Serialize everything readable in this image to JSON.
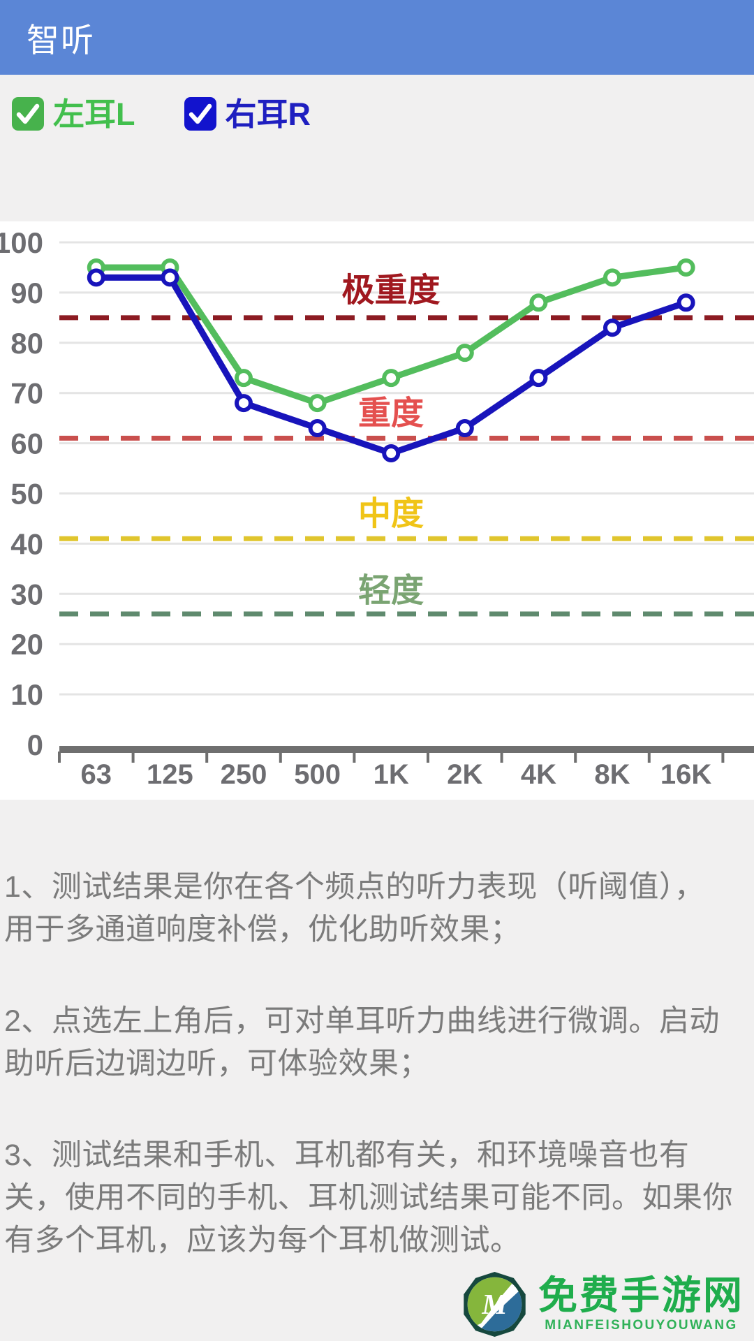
{
  "header": {
    "title": "智听",
    "bg": "#5b86d6"
  },
  "legend": {
    "left": {
      "label": "左耳L",
      "label_color": "#42bf4d",
      "checkbox_color": "#47b24c",
      "checked": true
    },
    "right": {
      "label": "右耳R",
      "label_color": "#1f1fc0",
      "checkbox_color": "#1213cd",
      "checked": true
    }
  },
  "chart_data": {
    "type": "line",
    "categories": [
      "63",
      "125",
      "250",
      "500",
      "1K",
      "2K",
      "4K",
      "8K",
      "16K"
    ],
    "series": [
      {
        "name": "左耳L",
        "color": "#53bd5d",
        "values": [
          95,
          95,
          73,
          68,
          73,
          78,
          88,
          93,
          95
        ]
      },
      {
        "name": "右耳R",
        "color": "#1814bb",
        "values": [
          93,
          93,
          68,
          63,
          58,
          63,
          73,
          83,
          88
        ]
      }
    ],
    "thresholds": [
      {
        "label": "极重度",
        "value": 85,
        "label_v": 90.5,
        "line_color": "#8c1b22",
        "text_color": "#a0181f"
      },
      {
        "label": "重度",
        "value": 61,
        "label_v": 66,
        "line_color": "#c94f4d",
        "text_color": "#e4504f"
      },
      {
        "label": "中度",
        "value": 41,
        "label_v": 46,
        "line_color": "#e0c52d",
        "text_color": "#f0c417"
      },
      {
        "label": "轻度",
        "value": 26,
        "label_v": 30.7,
        "line_color": "#5f8a6e",
        "text_color": "#7aa472"
      }
    ],
    "title": "",
    "xlabel": "",
    "ylabel": "",
    "ylim": [
      0,
      100
    ],
    "ytick_step": 10,
    "grid": true,
    "legend_position": "top-left",
    "grid_color": "#e4e4e4",
    "axis_color": "#6f6f6f",
    "tick_label_color": "#6d6d71"
  },
  "notes": {
    "p1": "1、测试结果是你在各个频点的听力表现（听阈值），\n用于多通道响度补偿，优化助听效果；",
    "p2": "2、点选左上角后，可对单耳听力曲线进行微调。启动\n助听后边调边听，可体验效果；",
    "p3": "3、测试结果和手机、耳机都有关，和环境噪音也有\n关，使用不同的手机、耳机测试结果可能不同。如果你\n有多个耳机，应该为每个耳机做测试。"
  },
  "watermark": {
    "name": "免费手游网",
    "subtitle": "MIANFEISHOUYOUWANG",
    "name_color": "#1fad4c",
    "subtitle_color": "#2fb158"
  }
}
